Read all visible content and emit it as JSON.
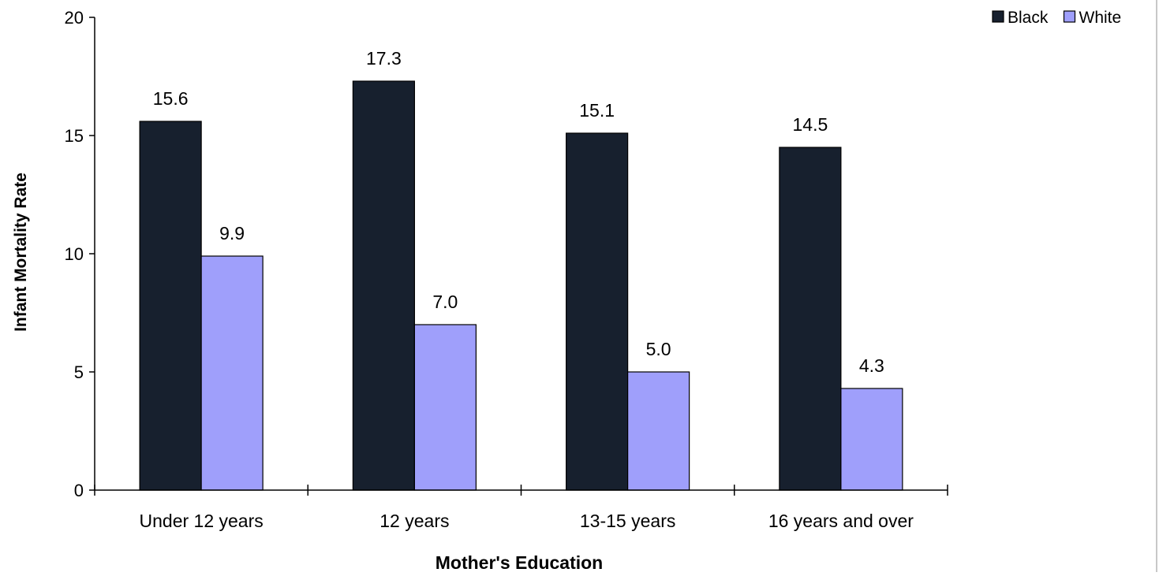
{
  "chart_data": {
    "type": "bar",
    "title": "",
    "xlabel": "Mother's Education",
    "ylabel": "Infant Mortality Rate",
    "categories": [
      "Under 12 years",
      "12 years",
      "13-15 years",
      "16 years and over"
    ],
    "series": [
      {
        "name": "Black",
        "color": "#17202e",
        "values": [
          15.6,
          17.3,
          15.1,
          14.5
        ],
        "labels": [
          "15.6",
          "17.3",
          "15.1",
          "14.5"
        ]
      },
      {
        "name": "White",
        "color": "#9f9ffb",
        "values": [
          9.9,
          7.0,
          5.0,
          4.3
        ],
        "labels": [
          "9.9",
          "7.0",
          "5.0",
          "4.3"
        ]
      }
    ],
    "ylim": [
      0,
      20
    ],
    "yticks": [
      "0",
      "5",
      "10",
      "15",
      "20"
    ],
    "grid": false,
    "legend_position": "top-right"
  }
}
